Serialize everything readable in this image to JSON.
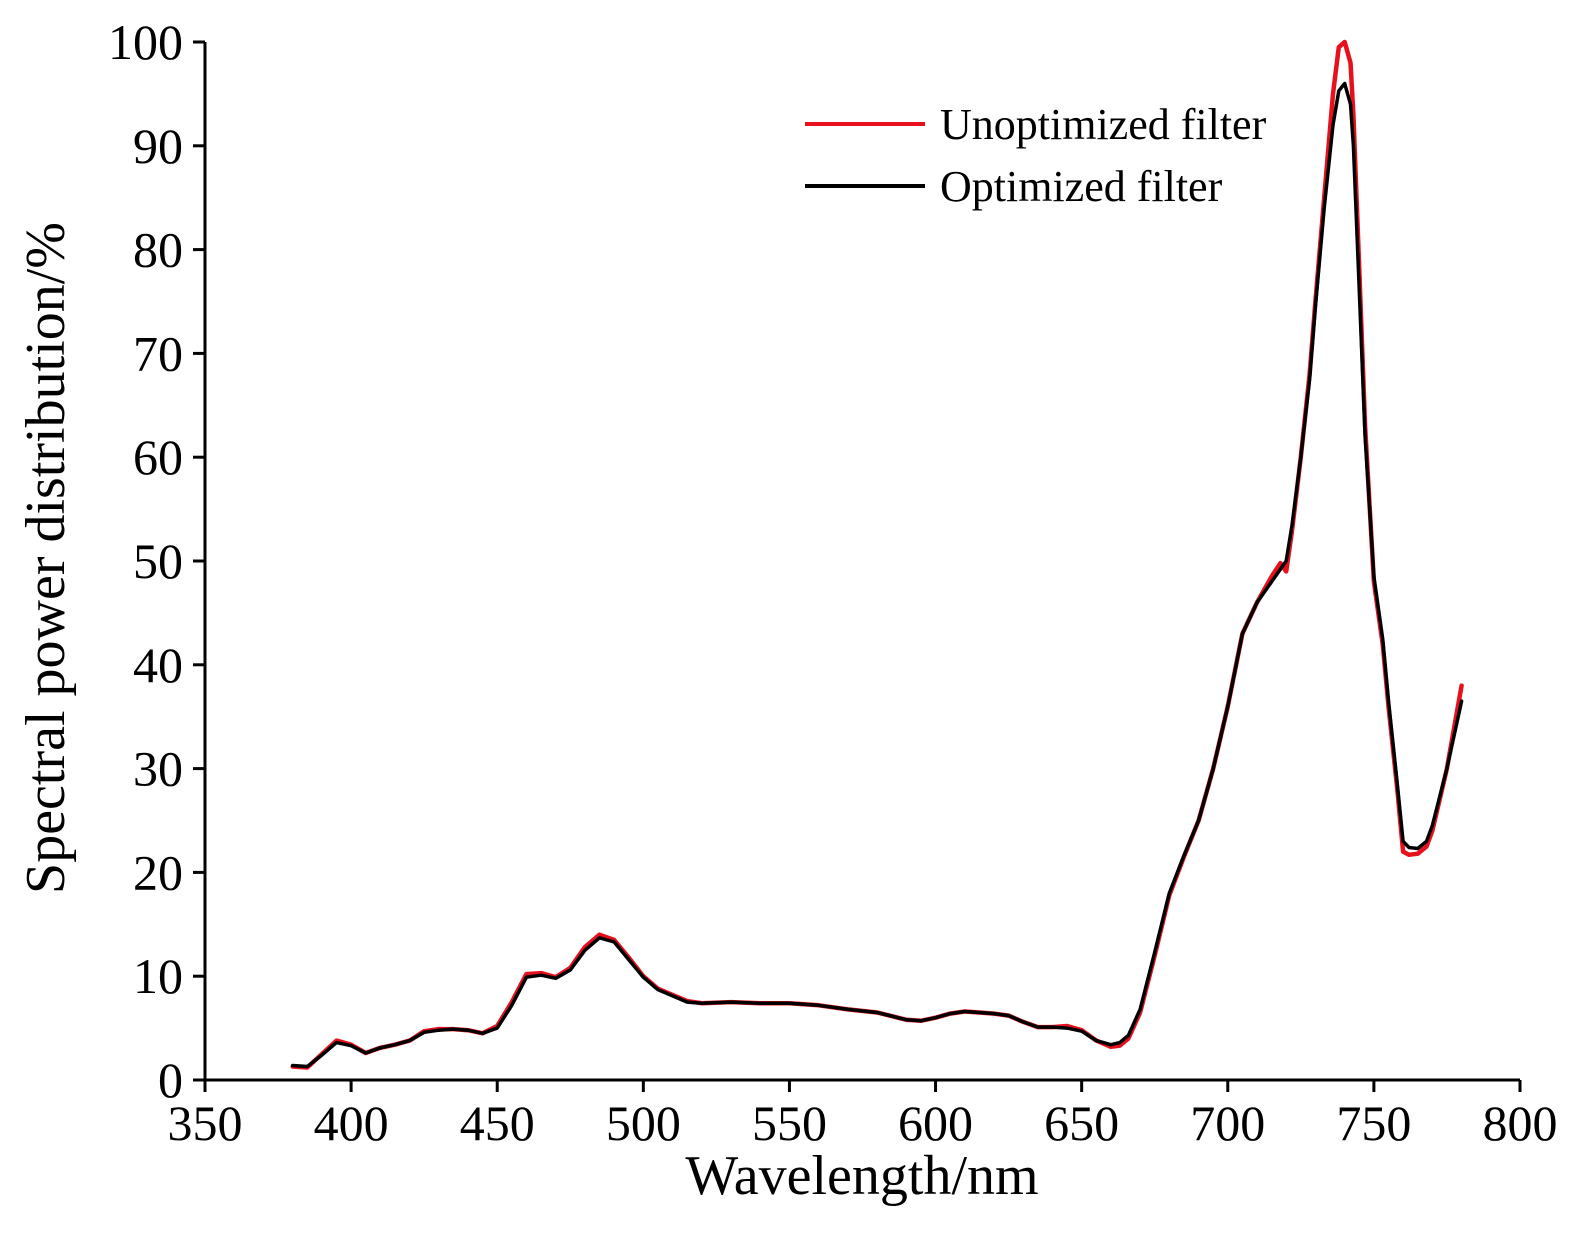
{
  "chart_data": {
    "type": "line",
    "xlabel": "Wavelength/nm",
    "ylabel": "Spectral power distribution/%",
    "xlim": [
      350,
      800
    ],
    "ylim": [
      0,
      100
    ],
    "x_ticks": [
      350,
      400,
      450,
      500,
      550,
      600,
      650,
      700,
      750,
      800
    ],
    "y_ticks": [
      0,
      10,
      20,
      30,
      40,
      50,
      60,
      70,
      80,
      90,
      100
    ],
    "grid": false,
    "legend_position": "top-right",
    "series": [
      {
        "name": "Unoptimized filter",
        "color": "#e8101c",
        "x": [
          380,
          385,
          390,
          395,
          400,
          405,
          410,
          415,
          420,
          425,
          430,
          435,
          440,
          445,
          450,
          455,
          460,
          465,
          470,
          475,
          480,
          485,
          490,
          495,
          500,
          505,
          510,
          515,
          520,
          530,
          540,
          550,
          560,
          570,
          580,
          590,
          595,
          600,
          605,
          610,
          615,
          620,
          625,
          630,
          635,
          640,
          645,
          650,
          655,
          660,
          663,
          666,
          670,
          675,
          680,
          685,
          690,
          695,
          700,
          705,
          710,
          715,
          718,
          720,
          722,
          725,
          728,
          730,
          733,
          736,
          738,
          740,
          742,
          743,
          745,
          747,
          750,
          753,
          755,
          758,
          760,
          762,
          765,
          768,
          770,
          775,
          780
        ],
        "y": [
          1.3,
          1.2,
          2.5,
          3.8,
          3.4,
          2.6,
          3.1,
          3.4,
          3.8,
          4.7,
          4.9,
          4.9,
          4.8,
          4.5,
          5.2,
          7.5,
          10.2,
          10.3,
          9.9,
          10.8,
          12.8,
          14.0,
          13.5,
          11.8,
          10.0,
          8.8,
          8.2,
          7.6,
          7.4,
          7.5,
          7.4,
          7.4,
          7.2,
          6.8,
          6.5,
          5.8,
          5.7,
          6.0,
          6.4,
          6.6,
          6.5,
          6.4,
          6.2,
          5.6,
          5.1,
          5.1,
          5.2,
          4.8,
          3.8,
          3.2,
          3.3,
          4.0,
          6.5,
          12.0,
          17.8,
          21.5,
          25.0,
          30.0,
          36.0,
          43.0,
          46.0,
          48.5,
          49.8,
          49.0,
          53.0,
          60.0,
          68.0,
          75.0,
          85.0,
          95.0,
          99.5,
          100.0,
          98.0,
          93.0,
          78.0,
          63.0,
          48.0,
          42.0,
          36.0,
          28.0,
          22.0,
          21.7,
          21.8,
          22.5,
          24.0,
          30.0,
          38.0
        ]
      },
      {
        "name": "Optimized filter",
        "color": "#000000",
        "x": [
          380,
          385,
          390,
          395,
          400,
          405,
          410,
          415,
          420,
          425,
          430,
          435,
          440,
          445,
          450,
          455,
          460,
          465,
          470,
          475,
          480,
          485,
          490,
          495,
          500,
          505,
          510,
          515,
          520,
          530,
          540,
          550,
          560,
          570,
          580,
          590,
          595,
          600,
          605,
          610,
          615,
          620,
          625,
          630,
          635,
          640,
          645,
          650,
          655,
          660,
          663,
          666,
          670,
          675,
          680,
          685,
          690,
          695,
          700,
          705,
          710,
          715,
          718,
          720,
          722,
          725,
          728,
          730,
          733,
          736,
          738,
          740,
          742,
          743,
          745,
          747,
          750,
          753,
          755,
          758,
          760,
          762,
          765,
          768,
          770,
          775,
          780
        ],
        "y": [
          1.4,
          1.3,
          2.4,
          3.6,
          3.3,
          2.6,
          3.1,
          3.4,
          3.8,
          4.6,
          4.8,
          4.9,
          4.8,
          4.5,
          5.0,
          7.2,
          9.9,
          10.1,
          9.8,
          10.6,
          12.5,
          13.7,
          13.3,
          11.6,
          9.9,
          8.7,
          8.1,
          7.5,
          7.4,
          7.5,
          7.4,
          7.4,
          7.2,
          6.8,
          6.5,
          5.8,
          5.7,
          6.0,
          6.4,
          6.6,
          6.5,
          6.4,
          6.2,
          5.6,
          5.1,
          5.1,
          5.0,
          4.7,
          3.8,
          3.4,
          3.6,
          4.3,
          6.8,
          12.3,
          18.0,
          21.6,
          25.0,
          30.0,
          36.0,
          43.0,
          46.0,
          48.0,
          49.2,
          50.0,
          53.5,
          60.0,
          67.5,
          74.5,
          84.0,
          92.0,
          95.3,
          96.0,
          94.0,
          90.0,
          76.0,
          62.0,
          48.5,
          42.5,
          36.5,
          28.5,
          23.0,
          22.4,
          22.3,
          23.0,
          24.5,
          30.0,
          36.5
        ]
      }
    ]
  }
}
